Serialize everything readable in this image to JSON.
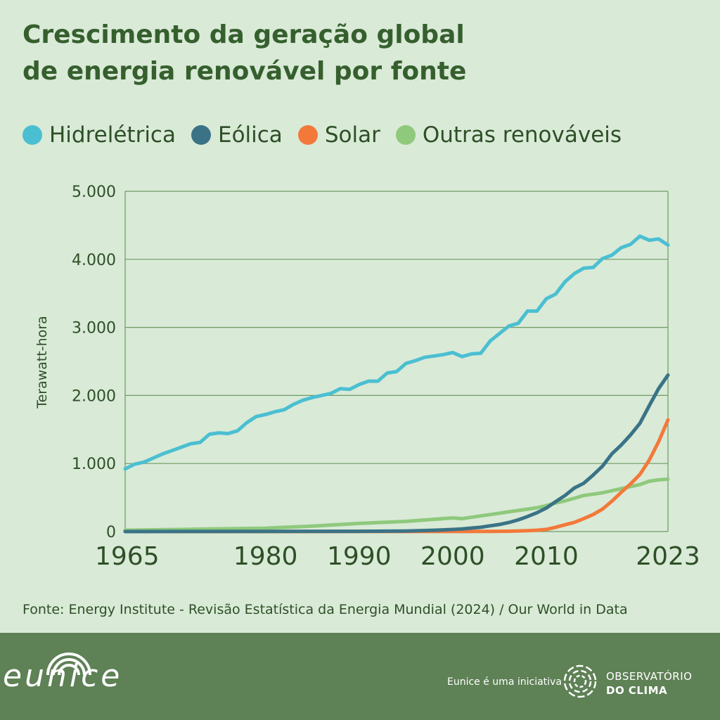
{
  "title": {
    "line1": "Crescimento da geração global",
    "line2": "de energia renovável por fonte"
  },
  "legend": [
    {
      "label": "Hidrelétrica",
      "color": "#4bbfd2"
    },
    {
      "label": "Eólica",
      "color": "#3a7386"
    },
    {
      "label": "Solar",
      "color": "#f3793a"
    },
    {
      "label": "Outras renováveis",
      "color": "#8fc97c"
    }
  ],
  "chart_data": {
    "type": "line",
    "title": "Crescimento da geração global de energia renovável por fonte",
    "xlabel": "",
    "ylabel": "Terawatt-hora",
    "xlim": [
      1965,
      2023
    ],
    "ylim": [
      0,
      5000
    ],
    "x_ticks": [
      "1965",
      "1980",
      "1990",
      "2000",
      "2010",
      "2023"
    ],
    "y_ticks": [
      "0",
      "1.000",
      "2.000",
      "3.000",
      "4.000",
      "5.000"
    ],
    "grid": "horizontal",
    "series": [
      {
        "name": "Hidrelétrica",
        "color": "#4bbfd2",
        "points": [
          [
            1965,
            920
          ],
          [
            1966,
            990
          ],
          [
            1967,
            1020
          ],
          [
            1968,
            1080
          ],
          [
            1969,
            1140
          ],
          [
            1970,
            1190
          ],
          [
            1971,
            1240
          ],
          [
            1972,
            1290
          ],
          [
            1973,
            1310
          ],
          [
            1974,
            1430
          ],
          [
            1975,
            1450
          ],
          [
            1976,
            1440
          ],
          [
            1977,
            1480
          ],
          [
            1978,
            1600
          ],
          [
            1979,
            1690
          ],
          [
            1980,
            1720
          ],
          [
            1981,
            1760
          ],
          [
            1982,
            1790
          ],
          [
            1983,
            1870
          ],
          [
            1984,
            1930
          ],
          [
            1985,
            1970
          ],
          [
            1986,
            2000
          ],
          [
            1987,
            2030
          ],
          [
            1988,
            2100
          ],
          [
            1989,
            2090
          ],
          [
            1990,
            2160
          ],
          [
            1991,
            2210
          ],
          [
            1992,
            2210
          ],
          [
            1993,
            2330
          ],
          [
            1994,
            2350
          ],
          [
            1995,
            2470
          ],
          [
            1996,
            2510
          ],
          [
            1997,
            2560
          ],
          [
            1998,
            2580
          ],
          [
            1999,
            2600
          ],
          [
            2000,
            2630
          ],
          [
            2001,
            2570
          ],
          [
            2002,
            2610
          ],
          [
            2003,
            2620
          ],
          [
            2004,
            2800
          ],
          [
            2005,
            2910
          ],
          [
            2006,
            3020
          ],
          [
            2007,
            3060
          ],
          [
            2008,
            3240
          ],
          [
            2009,
            3240
          ],
          [
            2010,
            3420
          ],
          [
            2011,
            3490
          ],
          [
            2012,
            3670
          ],
          [
            2013,
            3790
          ],
          [
            2014,
            3870
          ],
          [
            2015,
            3880
          ],
          [
            2016,
            4010
          ],
          [
            2017,
            4060
          ],
          [
            2018,
            4170
          ],
          [
            2019,
            4220
          ],
          [
            2020,
            4340
          ],
          [
            2021,
            4280
          ],
          [
            2022,
            4300
          ],
          [
            2023,
            4210
          ]
        ]
      },
      {
        "name": "Eólica",
        "color": "#3a7386",
        "points": [
          [
            1965,
            0
          ],
          [
            1990,
            4
          ],
          [
            1995,
            8
          ],
          [
            1998,
            20
          ],
          [
            2000,
            31
          ],
          [
            2001,
            38
          ],
          [
            2002,
            52
          ],
          [
            2003,
            63
          ],
          [
            2004,
            85
          ],
          [
            2005,
            104
          ],
          [
            2006,
            133
          ],
          [
            2007,
            171
          ],
          [
            2008,
            221
          ],
          [
            2009,
            277
          ],
          [
            2010,
            346
          ],
          [
            2011,
            440
          ],
          [
            2012,
            530
          ],
          [
            2013,
            640
          ],
          [
            2014,
            710
          ],
          [
            2015,
            830
          ],
          [
            2016,
            960
          ],
          [
            2017,
            1140
          ],
          [
            2018,
            1270
          ],
          [
            2019,
            1420
          ],
          [
            2020,
            1590
          ],
          [
            2021,
            1850
          ],
          [
            2022,
            2100
          ],
          [
            2023,
            2300
          ]
        ]
      },
      {
        "name": "Solar",
        "color": "#f3793a",
        "points": [
          [
            1965,
            0
          ],
          [
            2000,
            1
          ],
          [
            2004,
            3
          ],
          [
            2006,
            5
          ],
          [
            2008,
            12
          ],
          [
            2009,
            20
          ],
          [
            2010,
            32
          ],
          [
            2011,
            63
          ],
          [
            2012,
            100
          ],
          [
            2013,
            135
          ],
          [
            2014,
            190
          ],
          [
            2015,
            250
          ],
          [
            2016,
            330
          ],
          [
            2017,
            445
          ],
          [
            2018,
            575
          ],
          [
            2019,
            700
          ],
          [
            2020,
            840
          ],
          [
            2021,
            1050
          ],
          [
            2022,
            1320
          ],
          [
            2023,
            1640
          ]
        ]
      },
      {
        "name": "Outras renováveis",
        "color": "#8fc97c",
        "points": [
          [
            1965,
            20
          ],
          [
            1970,
            30
          ],
          [
            1975,
            40
          ],
          [
            1980,
            50
          ],
          [
            1985,
            80
          ],
          [
            1990,
            120
          ],
          [
            1995,
            150
          ],
          [
            2000,
            200
          ],
          [
            2001,
            190
          ],
          [
            2002,
            210
          ],
          [
            2003,
            230
          ],
          [
            2004,
            250
          ],
          [
            2005,
            270
          ],
          [
            2006,
            290
          ],
          [
            2007,
            310
          ],
          [
            2008,
            330
          ],
          [
            2009,
            350
          ],
          [
            2010,
            380
          ],
          [
            2011,
            420
          ],
          [
            2012,
            450
          ],
          [
            2013,
            490
          ],
          [
            2014,
            530
          ],
          [
            2015,
            550
          ],
          [
            2016,
            570
          ],
          [
            2017,
            600
          ],
          [
            2018,
            630
          ],
          [
            2019,
            660
          ],
          [
            2020,
            690
          ],
          [
            2021,
            740
          ],
          [
            2022,
            760
          ],
          [
            2023,
            770
          ]
        ]
      }
    ]
  },
  "source": "Fonte: Energy Institute - Revisão Estatística da Energia Mundial (2024) / Our World in Data",
  "footer": {
    "brand": "eunice",
    "initiative": "Eunice é uma iniciativa",
    "org_line1": "OBSERVATÓRIO",
    "org_line2": "DO CLIMA",
    "bg_color": "#5e8155"
  }
}
